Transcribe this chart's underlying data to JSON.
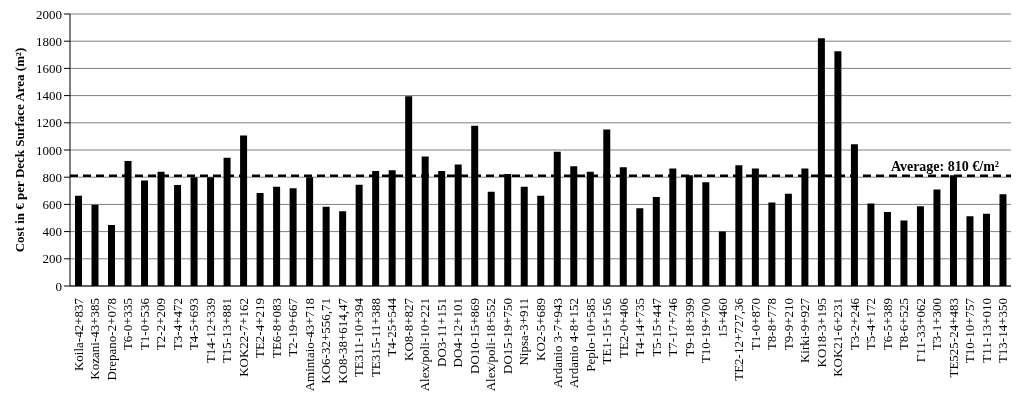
{
  "chart_data": {
    "type": "bar",
    "ylabel": "Cost in € per Deck Surface Area (m²)",
    "categories": [
      "Koila-42+837",
      "Kozani-43+385",
      "Drepano-2+078",
      "T6-0+335",
      "T1-0+536",
      "T2-2+209",
      "T3-4+472",
      "T4-5+693",
      "T14-12+339",
      "T15-13+881",
      "KOK22-7+162",
      "TE2-4+219",
      "TE6-8+083",
      "T2-19+667",
      "Amintaio-43+718",
      "KO6-32+556,71",
      "KO8-38+614,47",
      "TE311-10+394",
      "TE315-11+388",
      "T4-25+544",
      "KO8-8+827",
      "Alex/poli-10+221",
      "DO3-11+151",
      "DO4-12+101",
      "DO10-15+869",
      "Alex/poli-18+552",
      "DO15-19+750",
      "Nipsa-3+911",
      "KO2-5+689",
      "Ardanio 3-7+943",
      "Ardanio 4-8+152",
      "Peplo-10+585",
      "TE1-15+156",
      "TE2-0+406",
      "T4-14+735",
      "T5-15+447",
      "T7-17+746",
      "T9-18+399",
      "T10-19+700",
      "15+460",
      "TE2-12+727,36",
      "T1-0+870",
      "T8-8+778",
      "T9-9+210",
      "Kirki-9+927",
      "KO18-3+195",
      "KOK21-6+231",
      "T3-2+246",
      "T5-4+172",
      "T6-5+389",
      "T8-6+525",
      "Γ11-33+062",
      "T3-1+300",
      "TE525-24+483",
      "T10-10+757",
      "T11-13+010",
      "T13-14+350"
    ],
    "values": [
      664,
      598,
      448,
      919,
      776,
      840,
      743,
      800,
      800,
      943,
      1107,
      683,
      729,
      719,
      800,
      583,
      550,
      745,
      845,
      852,
      1395,
      952,
      845,
      893,
      1179,
      693,
      824,
      729,
      664,
      988,
      881,
      840,
      1150,
      874,
      571,
      655,
      864,
      814,
      762,
      400,
      888,
      864,
      614,
      679,
      864,
      1821,
      1726,
      1043,
      607,
      545,
      481,
      586,
      710,
      814,
      512,
      531,
      674
    ],
    "color": "#000000",
    "ylim": [
      0,
      2000
    ],
    "yticks": [
      0,
      200,
      400,
      600,
      800,
      1000,
      1200,
      1400,
      1600,
      1800,
      2000
    ],
    "grid": "y",
    "ref_lines": [
      {
        "axis": "y",
        "value": 810,
        "label": "Average: 810 €/m²",
        "color": "#000000",
        "line_style": "dashed"
      }
    ]
  }
}
